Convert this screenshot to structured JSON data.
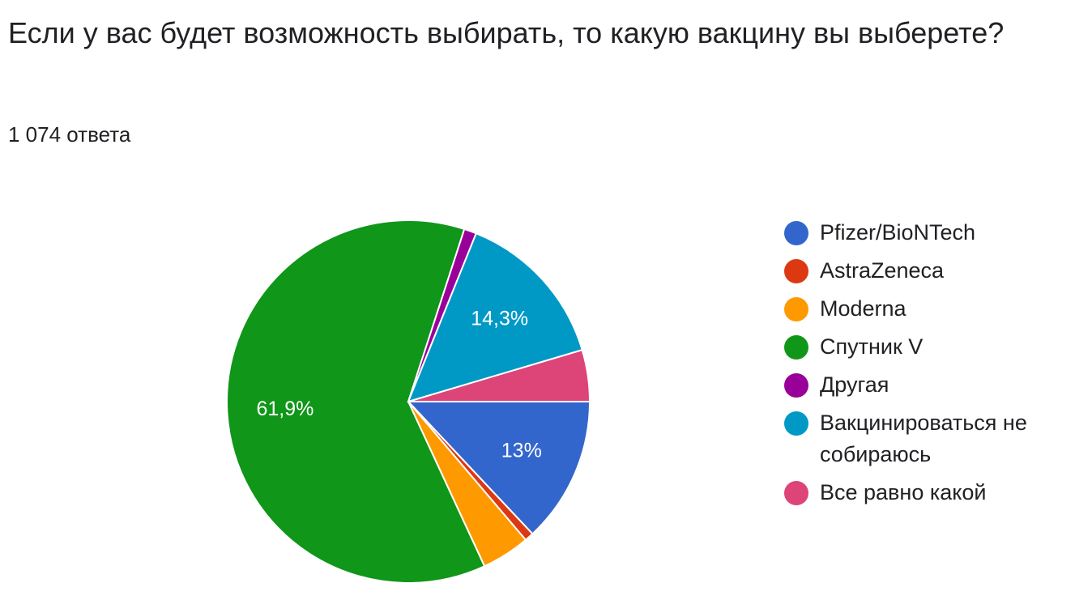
{
  "question": {
    "title": "Если у вас будет возможность выбирать, то какую вакцину вы выберете?",
    "response_count": "1 074 ответа"
  },
  "chart_data": {
    "type": "pie",
    "title": "Если у вас будет возможность выбирать, то какую вакцину вы выберете?",
    "slices": [
      {
        "name": "Pfizer/BioNTech",
        "value": 13.0,
        "label": "13%",
        "color": "#3366cc"
      },
      {
        "name": "AstraZeneca",
        "value": 0.8,
        "label": "",
        "color": "#dc3912"
      },
      {
        "name": "Moderna",
        "value": 4.3,
        "label": "",
        "color": "#ff9900"
      },
      {
        "name": "Спутник V",
        "value": 61.9,
        "label": "61,9%",
        "color": "#109618"
      },
      {
        "name": "Другая",
        "value": 1.1,
        "label": "",
        "color": "#990099"
      },
      {
        "name": "Вакцинироваться не собираюсь",
        "value": 14.3,
        "label": "14,3%",
        "color": "#0099c6"
      },
      {
        "name": "Все равно какой",
        "value": 4.6,
        "label": "",
        "color": "#dd4477"
      }
    ],
    "start_angle_deg": 90,
    "direction": "clockwise",
    "legend_position": "right"
  }
}
